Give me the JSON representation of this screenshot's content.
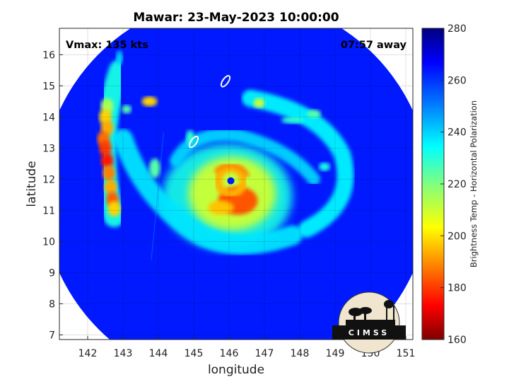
{
  "chart_data": {
    "type": "heatmap",
    "title": "Mawar: 23-May-2023 10:00:00",
    "xlabel": "longitude",
    "ylabel": "latitude",
    "xlim": [
      141.2,
      151.2
    ],
    "ylim": [
      6.85,
      16.85
    ],
    "xticks": [
      142,
      143,
      144,
      145,
      146,
      147,
      148,
      149,
      150,
      151
    ],
    "yticks": [
      7,
      8,
      9,
      10,
      11,
      12,
      13,
      14,
      15,
      16
    ],
    "grid": true,
    "annotations": {
      "vmax": "Vmax: 135 kts",
      "time_offset": "07:57 away"
    },
    "storm_center": {
      "lon": 146.05,
      "lat": 11.95
    },
    "swath": {
      "center_lon": 146.2,
      "center_lat": 11.6,
      "radius_deg": 5.5
    },
    "colorbar": {
      "label": "Brightness Temp - Horizontal Polarization",
      "range": [
        160,
        280
      ],
      "ticks": [
        160,
        180,
        200,
        220,
        240,
        260,
        280
      ],
      "colormap": "jet_reversed",
      "stops": [
        "#7f0000",
        "#ff0000",
        "#ff7f00",
        "#ffff00",
        "#7fff7f",
        "#00ffff",
        "#007fff",
        "#0000ff",
        "#00007f"
      ]
    },
    "background_tb": 262,
    "features": [
      {
        "kind": "eye",
        "lon": 146.05,
        "lat": 11.95,
        "tb": 262
      },
      {
        "kind": "eyewall",
        "lon": 146.05,
        "lat": 11.95,
        "tb": 198
      },
      {
        "kind": "core-heavy",
        "lon": 146.35,
        "lat": 11.3,
        "tb": 185
      },
      {
        "kind": "outer-band-west",
        "lon": 142.55,
        "lat": 13.2,
        "tb": 178
      },
      {
        "kind": "band-cell",
        "lon": 142.65,
        "lat": 11.2,
        "tb": 182
      },
      {
        "kind": "band-cell",
        "lon": 143.75,
        "lat": 14.5,
        "tb": 200
      },
      {
        "kind": "band-cell",
        "lon": 146.9,
        "lat": 14.45,
        "tb": 215
      },
      {
        "kind": "band-ne",
        "lon": 148.4,
        "lat": 14.1,
        "tb": 232
      },
      {
        "kind": "band-se",
        "lon": 147.9,
        "lat": 10.6,
        "tb": 228
      }
    ]
  },
  "logo": {
    "text": "CIMSS"
  }
}
